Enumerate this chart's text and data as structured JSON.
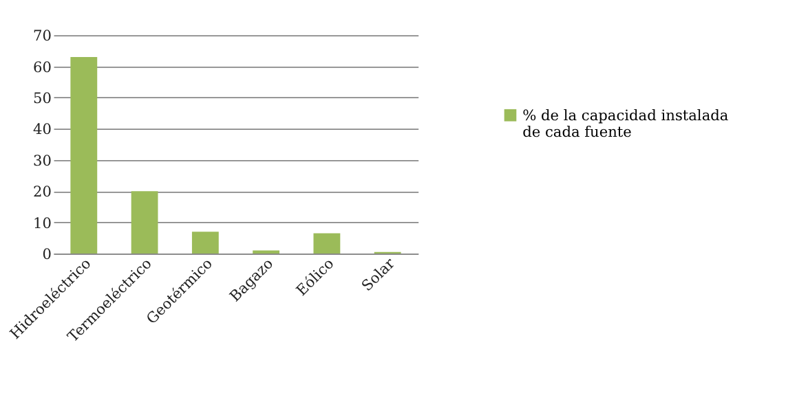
{
  "chart_data": {
    "type": "bar",
    "categories": [
      "Hidroeléctrico",
      "Termoeléctrico",
      "Geotérmico",
      "Bagazo",
      "Eólico",
      "Solar"
    ],
    "series": [
      {
        "name": "% de la capacidad instalada de cada fuente",
        "color": "#9bbb59",
        "values": [
          63,
          20,
          7,
          1,
          6.5,
          0.5
        ]
      }
    ],
    "ylim": [
      0,
      70
    ],
    "yticks": [
      0,
      10,
      20,
      30,
      40,
      50,
      60,
      70
    ],
    "grid": "y",
    "legend": "right"
  }
}
